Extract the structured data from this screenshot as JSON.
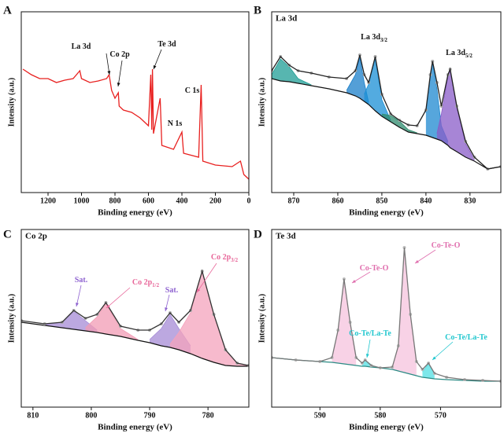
{
  "chart_data": [
    {
      "type": "line",
      "panel": "A",
      "xlabel": "Binding energy (eV)",
      "ylabel": "Intensity (a.u.)",
      "xlim": [
        1360,
        0
      ],
      "xticks": [
        1200,
        1000,
        800,
        600,
        400,
        200,
        0
      ],
      "ylim": [
        0,
        230
      ],
      "x": [
        1350,
        1300,
        1250,
        1200,
        1150,
        1100,
        1050,
        1010,
        1000,
        950,
        900,
        850,
        835,
        820,
        800,
        780,
        775,
        750,
        700,
        650,
        600,
        586,
        580,
        576,
        570,
        530,
        520,
        450,
        400,
        390,
        300,
        285,
        275,
        200,
        100,
        50,
        30,
        0
      ],
      "envelope": {
        "color": "#e8201f",
        "values": [
          157,
          150,
          145,
          145,
          140,
          143,
          145,
          155,
          145,
          140,
          142,
          145,
          150,
          130,
          120,
          127,
          110,
          105,
          102,
          95,
          85,
          150,
          80,
          157,
          75,
          120,
          60,
          55,
          77,
          50,
          45,
          137,
          40,
          35,
          33,
          40,
          23,
          17
        ]
      },
      "annotations": [
        {
          "text": "La 3d",
          "color": "#111"
        },
        {
          "text": "Co 2p",
          "color": "#111"
        },
        {
          "text": "Te 3d",
          "color": "#111"
        },
        {
          "text": "N 1s",
          "color": "#111"
        },
        {
          "text": "C 1s",
          "color": "#111"
        }
      ]
    },
    {
      "type": "line",
      "panel": "B",
      "title": "La 3d",
      "xlabel": "Binding energy (eV)",
      "ylabel": "Intensity (a.u.)",
      "xlim": [
        875,
        823
      ],
      "xticks": [
        870,
        860,
        850,
        840,
        830
      ],
      "ylim": [
        0,
        230
      ],
      "marker_color": "#aaaaaa",
      "x": [
        875,
        873,
        871,
        869,
        866,
        862,
        858,
        856,
        855,
        854,
        853,
        851.5,
        850,
        848,
        846,
        844,
        842,
        840,
        839,
        838.5,
        837.5,
        836.5,
        835,
        834.5,
        833,
        831,
        829,
        826,
        823
      ],
      "envelope": {
        "color": "#222222",
        "values": [
          155,
          173,
          162,
          155,
          152,
          147,
          145,
          155,
          175,
          150,
          140,
          173,
          125,
          100,
          92,
          86,
          85,
          105,
          150,
          167,
          140,
          110,
          150,
          157,
          110,
          65,
          45,
          30,
          33
        ]
      },
      "background": {
        "color": "#111111",
        "values": [
          145,
          142,
          141,
          139,
          136,
          132,
          127,
          123,
          120,
          116,
          112,
          104,
          97,
          90,
          83,
          77,
          75,
          73,
          71,
          70,
          68,
          66,
          60,
          57,
          52,
          45,
          40,
          30,
          33
        ]
      },
      "components": [
        {
          "color": "#1f9e95",
          "values": [
            150,
            170,
            160,
            145,
            137,
            null,
            null,
            null,
            null,
            null,
            null,
            null,
            null,
            null,
            null,
            null,
            null,
            null,
            null,
            null,
            null,
            null,
            null,
            null,
            null,
            null,
            null,
            null,
            null
          ]
        },
        {
          "color": "#1b7fc9",
          "values": [
            null,
            null,
            null,
            null,
            null,
            null,
            130,
            150,
            172,
            140,
            115,
            null,
            null,
            null,
            null,
            null,
            null,
            null,
            null,
            null,
            null,
            null,
            null,
            null,
            null,
            null,
            null,
            null,
            null
          ]
        },
        {
          "color": "#1a8fd6",
          "values": [
            null,
            null,
            null,
            null,
            null,
            null,
            null,
            null,
            null,
            125,
            138,
            170,
            118,
            92,
            null,
            null,
            null,
            null,
            null,
            null,
            null,
            null,
            null,
            null,
            null,
            null,
            null,
            null,
            null
          ]
        },
        {
          "color": "#2e8b6e",
          "values": [
            null,
            null,
            null,
            null,
            null,
            null,
            null,
            null,
            null,
            null,
            null,
            null,
            100,
            98,
            91,
            80,
            76,
            null,
            null,
            null,
            null,
            null,
            null,
            null,
            null,
            null,
            null,
            null,
            null
          ]
        },
        {
          "color": "#1e88d0",
          "values": [
            null,
            null,
            null,
            null,
            null,
            null,
            null,
            null,
            null,
            null,
            null,
            null,
            null,
            null,
            null,
            null,
            null,
            102,
            148,
            165,
            132,
            85,
            65,
            null,
            null,
            null,
            null,
            null,
            null
          ]
        },
        {
          "color": "#8a5cc8",
          "values": [
            null,
            null,
            null,
            null,
            null,
            null,
            null,
            null,
            null,
            null,
            null,
            null,
            null,
            null,
            null,
            null,
            null,
            null,
            null,
            null,
            75,
            100,
            148,
            155,
            108,
            62,
            42,
            null,
            null
          ]
        }
      ],
      "annotations": [
        {
          "text": "La 3d",
          "sub": "3/2",
          "color": "#111"
        },
        {
          "text": "La 3d",
          "sub": "5/2",
          "color": "#111"
        }
      ]
    },
    {
      "type": "line",
      "panel": "C",
      "title": "Co 2p",
      "xlabel": "Binding energy (eV)",
      "ylabel": "Intensity (a.u.)",
      "xlim": [
        812,
        773
      ],
      "xticks": [
        810,
        800,
        790,
        780
      ],
      "ylim": [
        0,
        226
      ],
      "marker_color": "#aaaaaa",
      "x": [
        812,
        808,
        805,
        803,
        801,
        799,
        797.5,
        795,
        792,
        790,
        788,
        786.5,
        785,
        783,
        781,
        779,
        777,
        775,
        773
      ],
      "envelope": {
        "color": "#333333",
        "values": [
          110,
          106,
          108,
          123,
          113,
          118,
          133,
          103,
          98,
          98,
          106,
          120,
          108,
          123,
          173,
          118,
          73,
          56,
          53
        ]
      },
      "background": {
        "color": "#111111",
        "values": [
          108,
          104,
          101,
          99,
          97,
          95,
          93,
          90,
          85,
          82,
          78,
          76,
          73,
          68,
          62,
          57,
          53,
          52,
          52
        ]
      },
      "components": [
        {
          "color": "#a58bd6",
          "values": [
            null,
            105,
            108,
            122,
            110,
            98,
            null,
            null,
            null,
            null,
            null,
            null,
            null,
            null,
            null,
            null,
            null,
            null,
            null
          ]
        },
        {
          "color": "#f29bb4",
          "values": [
            null,
            null,
            null,
            null,
            101,
            115,
            132,
            100,
            86,
            null,
            null,
            null,
            null,
            null,
            null,
            null,
            null,
            null,
            null
          ]
        },
        {
          "color": "#a58bd6",
          "values": [
            null,
            null,
            null,
            null,
            null,
            null,
            null,
            null,
            null,
            86,
            100,
            118,
            100,
            78,
            null,
            null,
            null,
            null,
            null
          ]
        },
        {
          "color": "#f4a3bc",
          "values": [
            null,
            null,
            null,
            null,
            null,
            null,
            null,
            null,
            null,
            null,
            null,
            80,
            95,
            120,
            172,
            118,
            73,
            56,
            52
          ]
        }
      ],
      "annotations": [
        {
          "text": "Sat.",
          "color": "#8e62d0"
        },
        {
          "text": "Co 2p",
          "sub": "1/2",
          "color": "#e8679a"
        },
        {
          "text": "Sat.",
          "color": "#8e62d0"
        },
        {
          "text": "Co 2p",
          "sub": "3/2",
          "color": "#e8679a"
        }
      ]
    },
    {
      "type": "line",
      "panel": "D",
      "title": "Te 3d",
      "xlabel": "Binding energy (eV)",
      "ylabel": "Intensity (a.u.)",
      "xlim": [
        598,
        560
      ],
      "xticks": [
        590,
        580,
        570
      ],
      "ylim": [
        0,
        226
      ],
      "marker_color": "#bbbbbb",
      "x": [
        598,
        594,
        590,
        588,
        587,
        586,
        585,
        584,
        583,
        582.5,
        581.5,
        580,
        578,
        577,
        576,
        575,
        574,
        573,
        572,
        571,
        569,
        566,
        563,
        560
      ],
      "envelope": {
        "color": "#777777",
        "values": [
          63,
          60,
          58,
          63,
          98,
          163,
          108,
          63,
          56,
          60,
          53,
          50,
          51,
          78,
          203,
          118,
          58,
          48,
          56,
          43,
          38,
          35,
          34,
          33
        ]
      },
      "background": {
        "color": "#2b8a84",
        "values": [
          63,
          60,
          58,
          57,
          56,
          55,
          54,
          53,
          52,
          52,
          51,
          50,
          48,
          46,
          44,
          42,
          40,
          38,
          37,
          36,
          35,
          34,
          33,
          33
        ]
      },
      "components": [
        {
          "color": "#f6c3de",
          "values": [
            null,
            null,
            null,
            62,
            97,
            162,
            107,
            60,
            null,
            null,
            null,
            null,
            null,
            null,
            null,
            null,
            null,
            null,
            null,
            null,
            null,
            null,
            null,
            null
          ]
        },
        {
          "color": "#52dfe3",
          "values": [
            null,
            null,
            null,
            null,
            null,
            null,
            null,
            null,
            55,
            60,
            54,
            null,
            null,
            null,
            null,
            null,
            null,
            null,
            null,
            null,
            null,
            null,
            null,
            null
          ]
        },
        {
          "color": "#f6c3de",
          "values": [
            null,
            null,
            null,
            null,
            null,
            null,
            null,
            null,
            null,
            null,
            null,
            null,
            50,
            77,
            202,
            117,
            56,
            null,
            null,
            null,
            null,
            null,
            null,
            null
          ]
        },
        {
          "color": "#52dfe3",
          "values": [
            null,
            null,
            null,
            null,
            null,
            null,
            null,
            null,
            null,
            null,
            null,
            null,
            null,
            null,
            null,
            null,
            null,
            45,
            55,
            42,
            null,
            null,
            null,
            null
          ]
        }
      ],
      "annotations": [
        {
          "text": "Co-Te-O",
          "color": "#e06fae"
        },
        {
          "text": "Co-Te-O",
          "color": "#e06fae"
        },
        {
          "text": "Co-Te/La-Te",
          "color": "#22c7cf"
        },
        {
          "text": "Co-Te/La-Te",
          "color": "#22c7cf"
        }
      ]
    }
  ]
}
